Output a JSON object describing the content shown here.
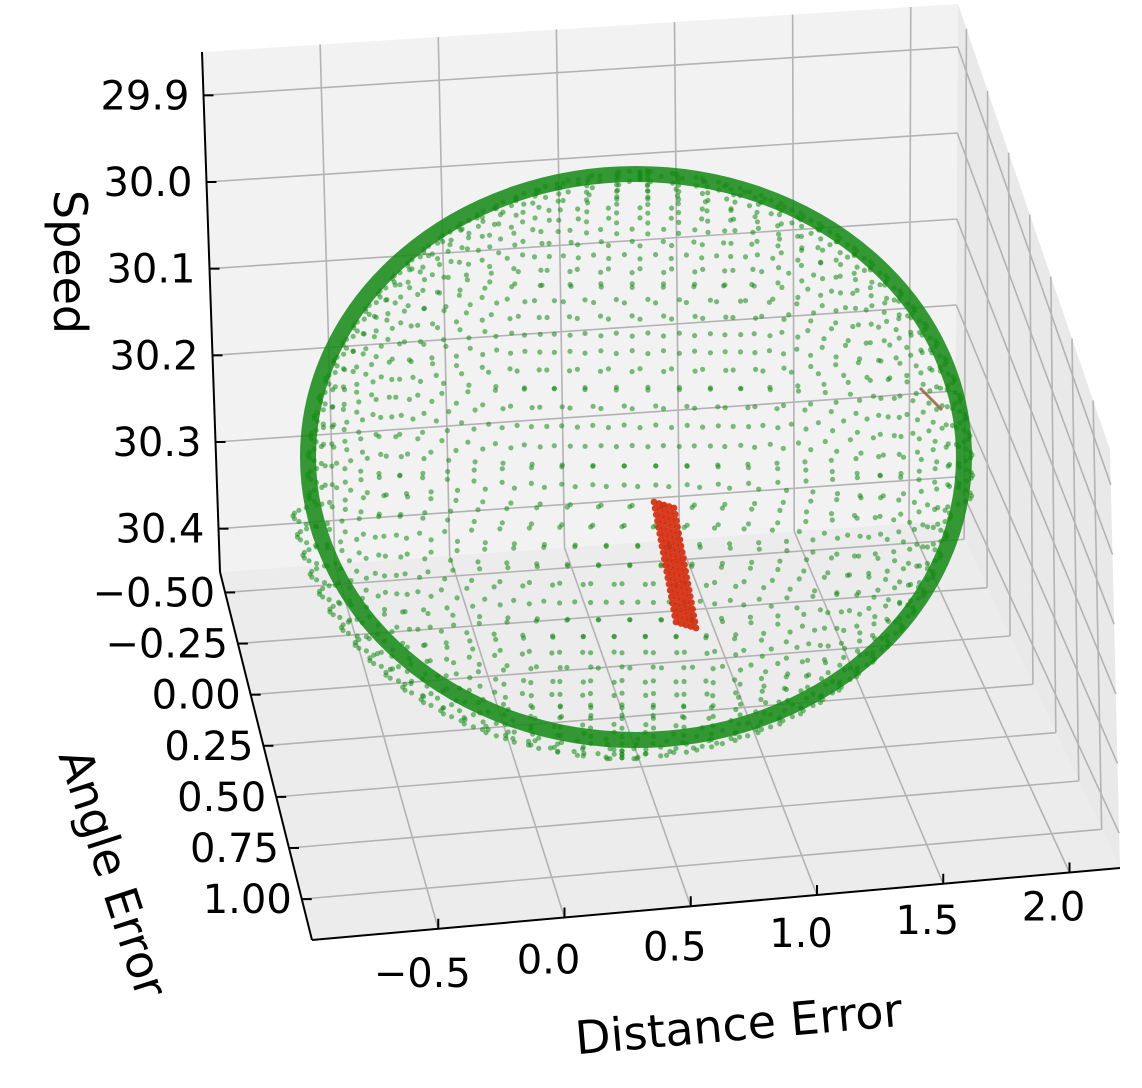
{
  "chart_data": {
    "type": "scatter",
    "projection": "3d",
    "axes": {
      "x": {
        "label": "Distance Error",
        "ticks": [
          "−0.5",
          "0.0",
          "0.5",
          "1.0",
          "1.5",
          "2.0"
        ],
        "range": [
          -1.0,
          2.2
        ]
      },
      "y": {
        "label": "Angle Error",
        "ticks": [
          "−0.50",
          "−0.25",
          "0.00",
          "0.25",
          "0.50",
          "0.75",
          "1.00"
        ],
        "range": [
          -0.6,
          1.2
        ]
      },
      "z": {
        "label": "Speed",
        "ticks": [
          "29.9",
          "30.0",
          "30.1",
          "30.2",
          "30.3",
          "30.4"
        ],
        "range": [
          29.85,
          30.45
        ],
        "inverted": true
      }
    },
    "grid": true,
    "series": [
      {
        "shape": "ellipsoid",
        "color": "#138a13",
        "center": {
          "x": 0.6,
          "y": 0.3,
          "z": 30.15
        },
        "semi_axes": {
          "x": 1.1,
          "y": 0.75,
          "z": 0.25
        }
      },
      {
        "shape": "cluster",
        "color": "#d42a0a",
        "center": {
          "x": 0.5,
          "y": 0.3,
          "z": 30.33
        }
      }
    ]
  }
}
